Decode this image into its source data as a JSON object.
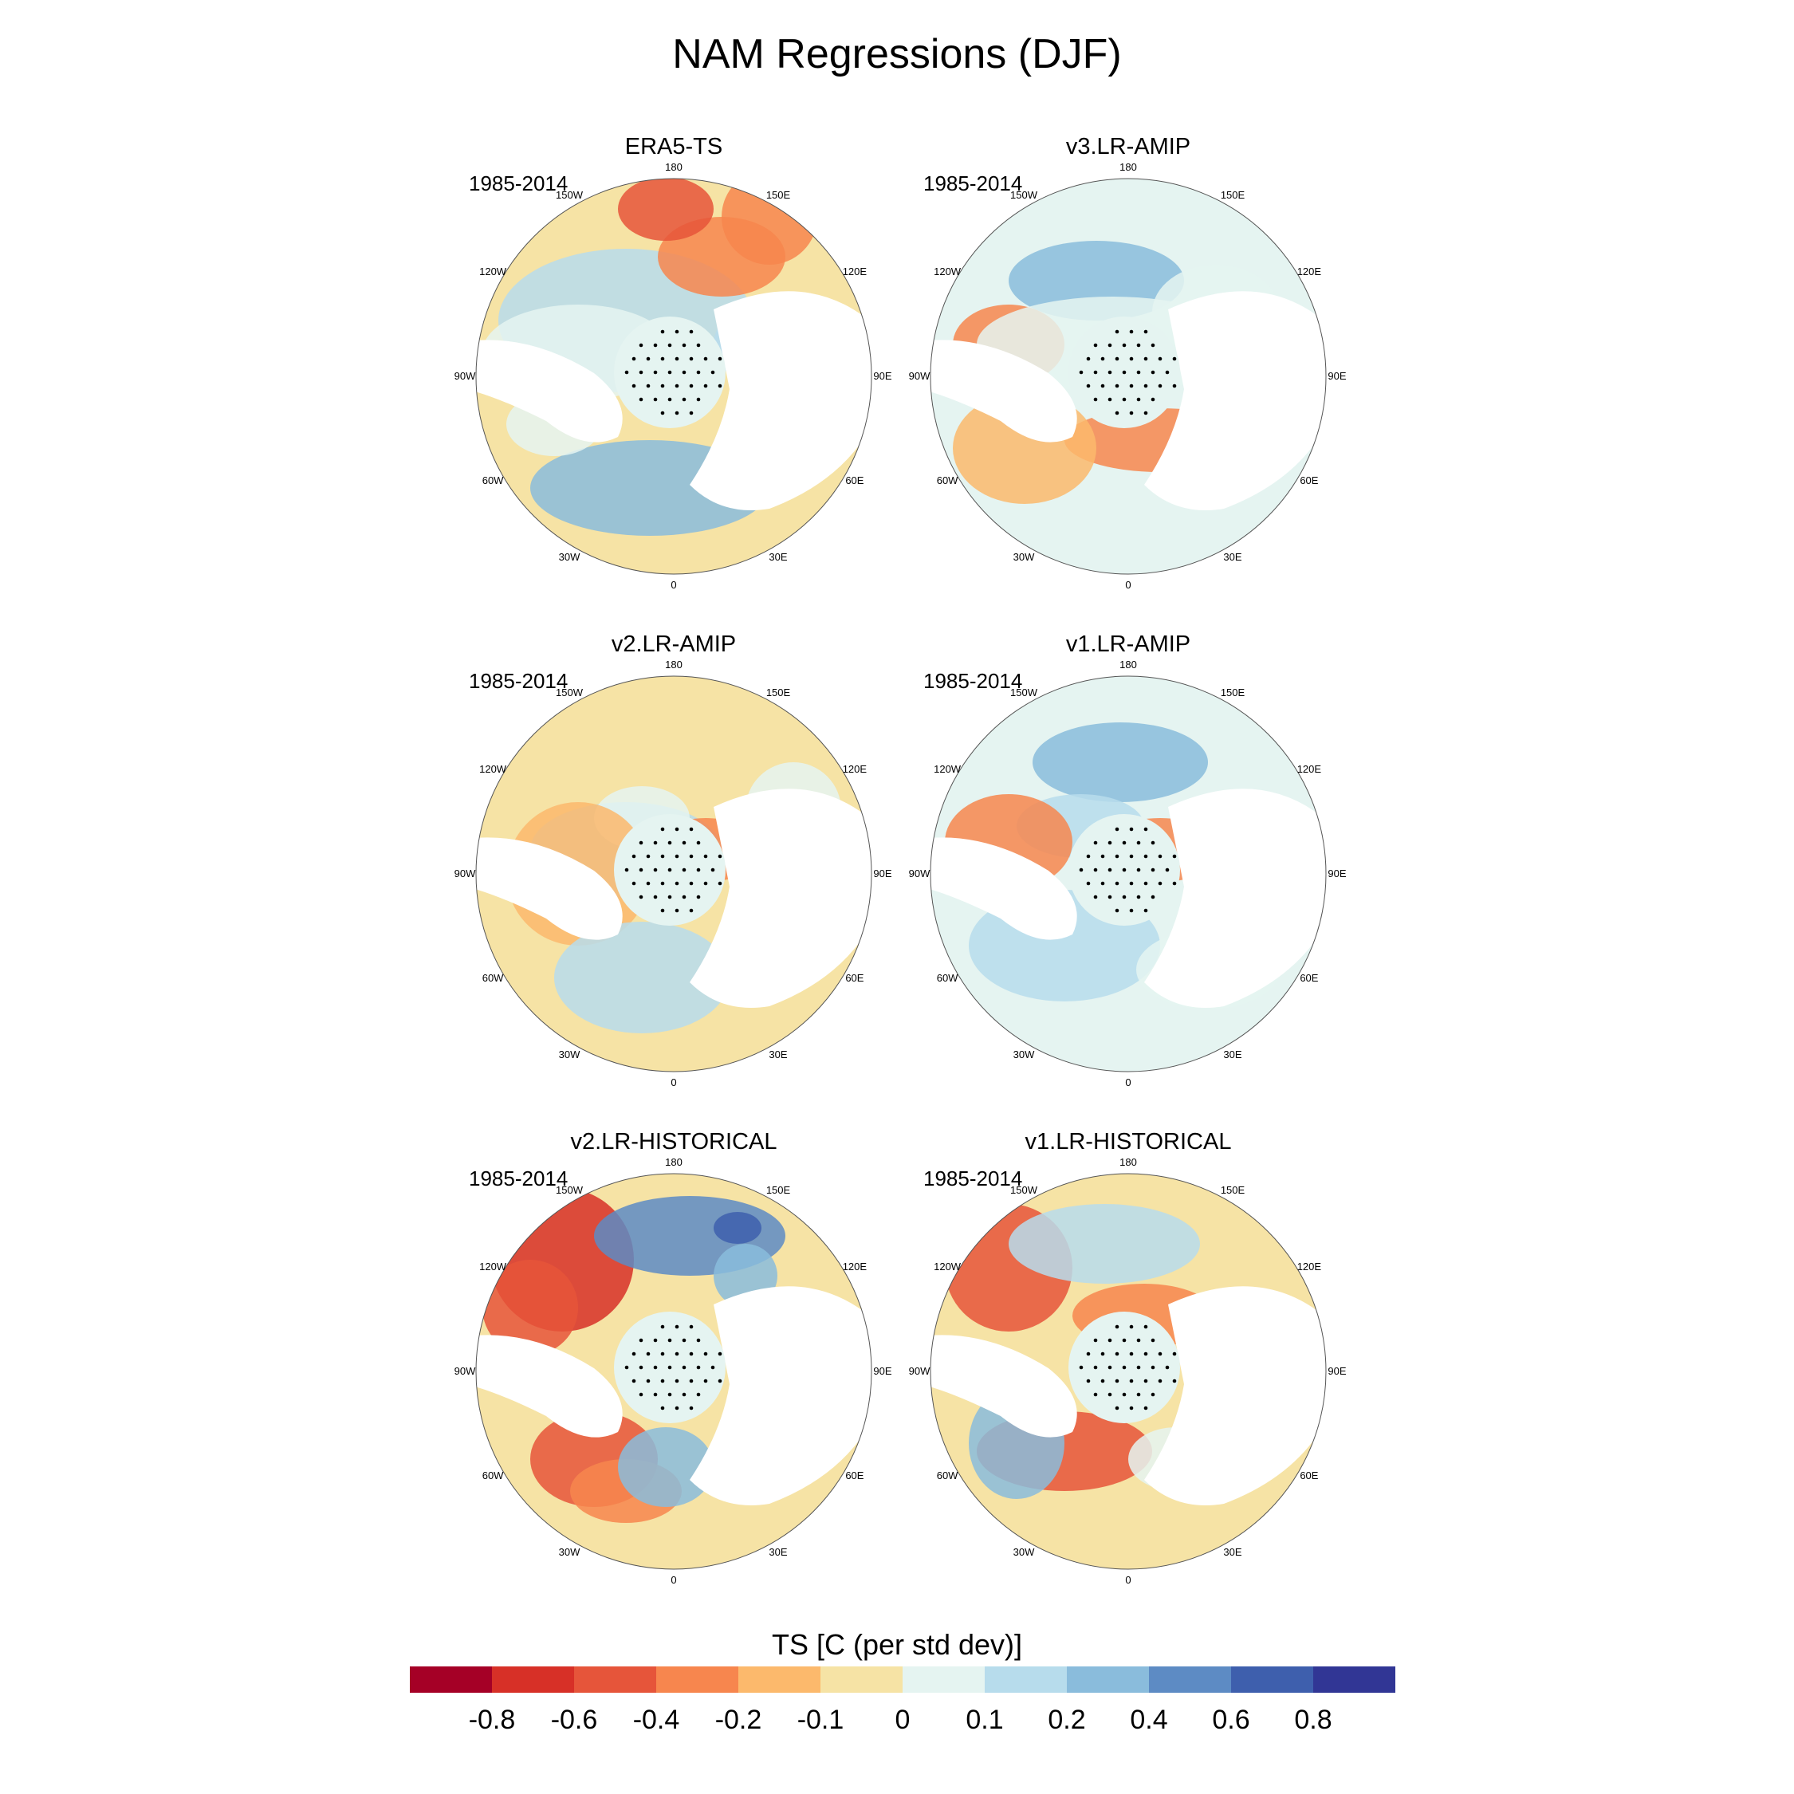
{
  "title": "NAM Regressions (DJF)",
  "colorbar": {
    "label": "TS [C (per std dev)]",
    "levels": [
      "-0.8",
      "-0.6",
      "-0.4",
      "-0.2",
      "-0.1",
      "0",
      "0.1",
      "0.2",
      "0.4",
      "0.6",
      "0.8"
    ],
    "colors": [
      "#a50026",
      "#d73027",
      "#e6553a",
      "#f7864e",
      "#fcb96c",
      "#f6e3a5",
      "#e5f4f1",
      "#b7dcec",
      "#8abcdc",
      "#5d8bc4",
      "#3e5fad",
      "#313695"
    ]
  },
  "longitude_labels": [
    "180",
    "150E",
    "120E",
    "90E",
    "60E",
    "30E",
    "0",
    "30W",
    "60W",
    "90W",
    "120W",
    "150W"
  ],
  "panels": [
    {
      "title": "ERA5-TS",
      "period": "1985-2014"
    },
    {
      "title": "v3.LR-AMIP",
      "period": "1985-2014"
    },
    {
      "title": "v2.LR-AMIP",
      "period": "1985-2014"
    },
    {
      "title": "v1.LR-AMIP",
      "period": "1985-2014"
    },
    {
      "title": "v2.LR-HISTORICAL",
      "period": "1985-2014"
    },
    {
      "title": "v1.LR-HISTORICAL",
      "period": "1985-2014"
    }
  ]
}
